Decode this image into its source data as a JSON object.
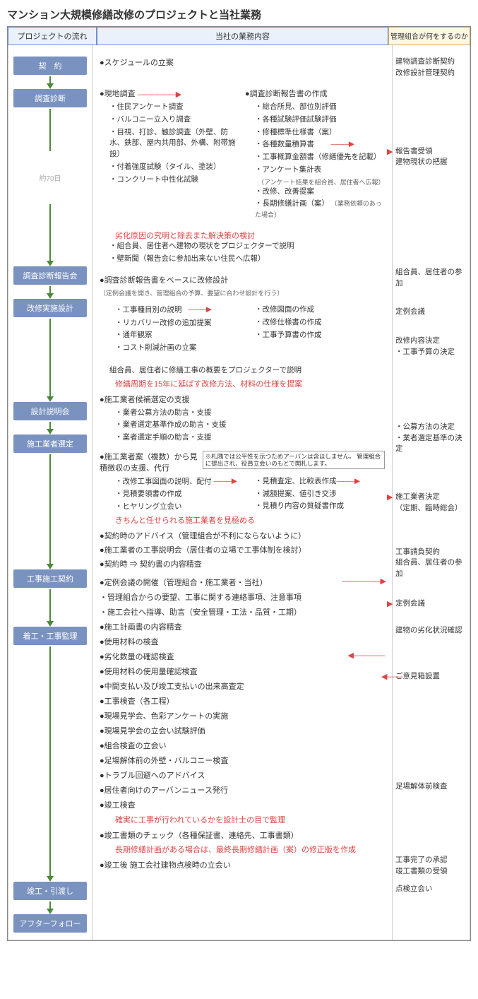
{
  "page_title": "マンション大規模修繕改修のプロジェクトと当社業務",
  "headers": {
    "flow": "プロジェクトの流れ",
    "work": "当社の業務内容",
    "assoc": "管理組合が何をするのか"
  },
  "stages": {
    "contract": "契　約",
    "survey": "調査診断",
    "survey_report": "調査診断報告会",
    "design": "改修実施設計",
    "design_brief": "設計説明会",
    "contractor_select": "施工業者選定",
    "const_contract": "工事施工契約",
    "const_super": "着工・工事監理",
    "completion": "竣工・引渡し",
    "after": "アフターフォロー"
  },
  "duration_70": "約70日",
  "work": {
    "schedule": "●スケジュールの立案",
    "site_survey": "●現地調査",
    "site_items": [
      "・住民アンケート調査",
      "・バルコニー立入り調査",
      "・目視、打診、触診調査（外壁、防水、鉄部、屋内共用部、外構、附帯施設）",
      "・付着強度試験（タイル、塗装）",
      "・コンクリート中性化試験"
    ],
    "report_create": "●調査診断報告書の作成",
    "report_items": [
      "・総合所見、部位別評価",
      "・各種試験評価試験評価",
      "・修種標準仕様書（案）",
      "・各種数量積算書",
      "・工事概算金額書（修繕優先を記載）",
      "・アンケート集計表",
      "・改修、改善提案",
      "・長期修繕計画（案）"
    ],
    "report_note": "（アンケート結果を組合員、居住者へ広報）",
    "report_note2": "〔業務依頼のあった場合〕",
    "cause_red": "劣化原因の究明と除去また解決策の検討",
    "report_meeting_items": [
      "・組合員、居住者へ建物の現状をプロジェクターで説明",
      "・壁新聞（報告会に参加出来ない住民へ広報）"
    ],
    "design_base": "●調査診断報告書をベースに改修設計",
    "design_base_note": "（定例会議を開き、管理組合の予算、要望に合わせ設計を行う）",
    "design_left": [
      "・工事種目別の説明",
      "・リカバリー改修の追加提案",
      "・通年観察",
      "・コスト削減計画の立案"
    ],
    "design_right": [
      "・改修図面の作成",
      "・改修仕様書の作成",
      "・工事予算書の作成"
    ],
    "design_brief_line": "組合員、居住者に修繕工事の概要をプロジェクターで説明",
    "design_red": "修繕周期を15年に延ばす改修方法、材料の仕様を提案",
    "contractor_support": "●施工業者候補選定の支援",
    "contractor_items": [
      "・業者公募方法の助言・支援",
      "・業者選定基準作成の助言・支援",
      "・業者選定手順の助言・支援"
    ],
    "estimate_head": "●施工業者案（複数）から見積徴収の支援、代行",
    "estimate_box": "※札隅では公平性を示つためアーバンは含ほしません。\n管理組合に提出され、役員立会いのもとで開札します。",
    "estimate_left": [
      "・改修工事図面の説明、配付",
      "・見積要領書の作成",
      "・ヒヤリング立会い"
    ],
    "estimate_right": [
      "・見積査定、比較表作成",
      "・減額提案、値引き交渉",
      "・見積り内容の質疑書作成"
    ],
    "estimate_red": "きちんと任せられる施工業者を見極める",
    "const_contract_items": [
      "●契約時のアドバイス（管理組合が不利にならないように）",
      "●施工業者の工事説明会（居住者の立場で工事体制を検討）",
      "●契約時 ⇒ 契約書の内容精査"
    ],
    "super_items": [
      "●定例会議の開催（管理組合・施工業者・当社）",
      "・管理組合からの要望、工事に関する連絡事項、注意事項",
      "・施工会社へ指導、助言（安全管理・工法・品質・工期）",
      "●施工計画書の内容精査",
      "●使用材料の検査",
      "●劣化数量の確認検査",
      "●使用材料の使用量確認検査",
      "●中間支払い及び竣工支払いの出来高査定",
      "●工事検査（各工程）",
      "●現場見学会、色彩アンケートの実施",
      "●現場見学会の立会い試験評価",
      "●組合検査の立会い",
      "●足場解体前の外壁・バルコニー検査",
      "●トラブル回避へのアドバイス",
      "●居住者向けのアーバンニュース発行",
      "●竣工検査"
    ],
    "super_red": "確実に工事が行われているかを設計士の目で監理",
    "completion_item": "●竣工書類のチェック（各種保証書、連絡先、工事書類）",
    "completion_red": "長期修繕計画がある場合は、最終長期修繕計画（案）の修正版を作成",
    "after_item": "●竣工後 施工会社建物点検時の立会い"
  },
  "assoc": {
    "contract1": "建物調査診断契約",
    "contract2": "改修設計管理契約",
    "report_recv": "報告書受領",
    "grasp": "建物現状の把握",
    "attend1": "組合員、居住者の参加",
    "regular": "定例会議",
    "decide1": "改修内容決定",
    "decide2": "・工事予算の決定",
    "public_method": "・公募方法の決定",
    "criteria": "・業者選定基準の決定",
    "contractor_decide": "施工業者決定",
    "contractor_decide2": "（定期、臨時総会）",
    "const_contract": "工事請負契約",
    "const_attend": "組合員、居住者の参加",
    "regular2": "定例会議",
    "bldg_check": "建物の劣化状況確認",
    "opinion_box": "ご意見箱設置",
    "scaffold": "足場解体前検査",
    "complete1": "工事完了の承認",
    "complete2": "竣工書類の受領",
    "inspect": "点検立会い"
  },
  "colors": {
    "stage_bg": "#7a92c0",
    "stage_text": "#ffffff",
    "header_bg": "#eaf1fb",
    "header_border": "#6a8fd4",
    "assoc_bg": "#fff8e5",
    "assoc_border": "#d6a860",
    "green": "#4a8a3a",
    "red": "#d44444"
  }
}
